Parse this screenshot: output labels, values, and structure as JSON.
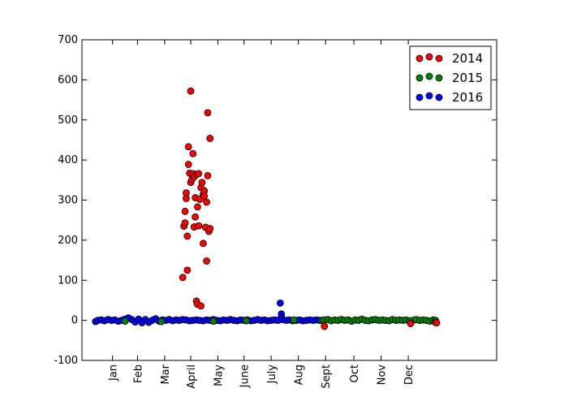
{
  "chart_data": {
    "type": "scatter",
    "title": "",
    "xlabel": "",
    "ylabel": "",
    "xlim": [
      -12,
      354
    ],
    "ylim": [
      -100,
      700
    ],
    "yticks": [
      -100,
      0,
      100,
      200,
      300,
      400,
      500,
      600,
      700
    ],
    "xticks": [
      {
        "label": "Jan",
        "x": 15
      },
      {
        "label": "Feb",
        "x": 37
      },
      {
        "label": "Mar",
        "x": 61
      },
      {
        "label": "April",
        "x": 84
      },
      {
        "label": "May",
        "x": 108
      },
      {
        "label": "June",
        "x": 131
      },
      {
        "label": "July",
        "x": 155
      },
      {
        "label": "Aug",
        "x": 179
      },
      {
        "label": "Sept",
        "x": 203
      },
      {
        "label": "Oct",
        "x": 228
      },
      {
        "label": "Nov",
        "x": 252
      },
      {
        "label": "Dec",
        "x": 276
      }
    ],
    "legend_position": "top-right",
    "grid": false,
    "series": [
      {
        "name": "2014",
        "color": "#ff0000",
        "points": [
          [
            77,
            107
          ],
          [
            78,
            235
          ],
          [
            79,
            243
          ],
          [
            79,
            272
          ],
          [
            80,
            304
          ],
          [
            80,
            318
          ],
          [
            81,
            125
          ],
          [
            81,
            210
          ],
          [
            82,
            433
          ],
          [
            82,
            389
          ],
          [
            83,
            367
          ],
          [
            84,
            572
          ],
          [
            84,
            344
          ],
          [
            85,
            351
          ],
          [
            86,
            416
          ],
          [
            86,
            366
          ],
          [
            87,
            233
          ],
          [
            87,
            358
          ],
          [
            88,
            258
          ],
          [
            88,
            306
          ],
          [
            89,
            48
          ],
          [
            89,
            364
          ],
          [
            90,
            283
          ],
          [
            90,
            40
          ],
          [
            91,
            236
          ],
          [
            91,
            366
          ],
          [
            92,
            302
          ],
          [
            93,
            36
          ],
          [
            93,
            331
          ],
          [
            94,
            344
          ],
          [
            95,
            314
          ],
          [
            95,
            192
          ],
          [
            96,
            323
          ],
          [
            96,
            310
          ],
          [
            97,
            232
          ],
          [
            98,
            148
          ],
          [
            98,
            295
          ],
          [
            99,
            518
          ],
          [
            99,
            361
          ],
          [
            100,
            222
          ],
          [
            101,
            454
          ],
          [
            101,
            229
          ],
          [
            202,
            -15
          ],
          [
            278,
            -8
          ],
          [
            300,
            -5
          ],
          [
            301,
            -6
          ]
        ]
      },
      {
        "name": "2015",
        "color": "#008000",
        "points": [
          [
            200,
            0
          ],
          [
            202,
            1
          ],
          [
            205,
            2
          ],
          [
            208,
            -1
          ],
          [
            211,
            1
          ],
          [
            214,
            0
          ],
          [
            217,
            2
          ],
          [
            220,
            0
          ],
          [
            223,
            1
          ],
          [
            226,
            -2
          ],
          [
            229,
            1
          ],
          [
            232,
            0
          ],
          [
            235,
            3
          ],
          [
            238,
            0
          ],
          [
            241,
            -1
          ],
          [
            244,
            1
          ],
          [
            247,
            2
          ],
          [
            250,
            0
          ],
          [
            253,
            1
          ],
          [
            256,
            0
          ],
          [
            259,
            -1
          ],
          [
            262,
            2
          ],
          [
            265,
            0
          ],
          [
            268,
            1
          ],
          [
            271,
            0
          ],
          [
            274,
            1
          ],
          [
            277,
            -1
          ],
          [
            280,
            0
          ],
          [
            283,
            2
          ],
          [
            286,
            0
          ],
          [
            289,
            1
          ],
          [
            292,
            0
          ],
          [
            295,
            -2
          ],
          [
            298,
            1
          ],
          [
            300,
            0
          ],
          [
            26,
            -2
          ],
          [
            58,
            -3
          ],
          [
            104,
            -2
          ],
          [
            133,
            -1
          ],
          [
            175,
            1
          ]
        ]
      },
      {
        "name": "2016",
        "color": "#0000ff",
        "points": [
          [
            0,
            -3
          ],
          [
            2,
            0
          ],
          [
            5,
            1
          ],
          [
            8,
            -1
          ],
          [
            11,
            2
          ],
          [
            14,
            0
          ],
          [
            17,
            1
          ],
          [
            20,
            -2
          ],
          [
            23,
            0
          ],
          [
            26,
            3
          ],
          [
            29,
            6
          ],
          [
            32,
            2
          ],
          [
            35,
            -4
          ],
          [
            38,
            3
          ],
          [
            41,
            -6
          ],
          [
            44,
            2
          ],
          [
            47,
            -5
          ],
          [
            50,
            0
          ],
          [
            53,
            4
          ],
          [
            56,
            -2
          ],
          [
            59,
            1
          ],
          [
            62,
            0
          ],
          [
            65,
            2
          ],
          [
            68,
            -1
          ],
          [
            71,
            1
          ],
          [
            74,
            0
          ],
          [
            77,
            2
          ],
          [
            80,
            1
          ],
          [
            83,
            -1
          ],
          [
            86,
            0
          ],
          [
            89,
            1
          ],
          [
            92,
            0
          ],
          [
            95,
            -1
          ],
          [
            98,
            1
          ],
          [
            101,
            0
          ],
          [
            104,
            2
          ],
          [
            107,
            0
          ],
          [
            110,
            -1
          ],
          [
            113,
            1
          ],
          [
            116,
            0
          ],
          [
            119,
            2
          ],
          [
            122,
            0
          ],
          [
            125,
            -1
          ],
          [
            128,
            1
          ],
          [
            131,
            0
          ],
          [
            134,
            1
          ],
          [
            137,
            -1
          ],
          [
            140,
            0
          ],
          [
            143,
            2
          ],
          [
            146,
            0
          ],
          [
            149,
            1
          ],
          [
            152,
            -1
          ],
          [
            155,
            0
          ],
          [
            158,
            1
          ],
          [
            161,
            0
          ],
          [
            163,
            43
          ],
          [
            164,
            16
          ],
          [
            164,
            8
          ],
          [
            165,
            2
          ],
          [
            168,
            0
          ],
          [
            171,
            1
          ],
          [
            174,
            -1
          ],
          [
            177,
            0
          ],
          [
            180,
            1
          ],
          [
            183,
            -1
          ],
          [
            186,
            0
          ],
          [
            189,
            1
          ],
          [
            192,
            0
          ],
          [
            195,
            1
          ],
          [
            198,
            0
          ]
        ]
      }
    ]
  }
}
